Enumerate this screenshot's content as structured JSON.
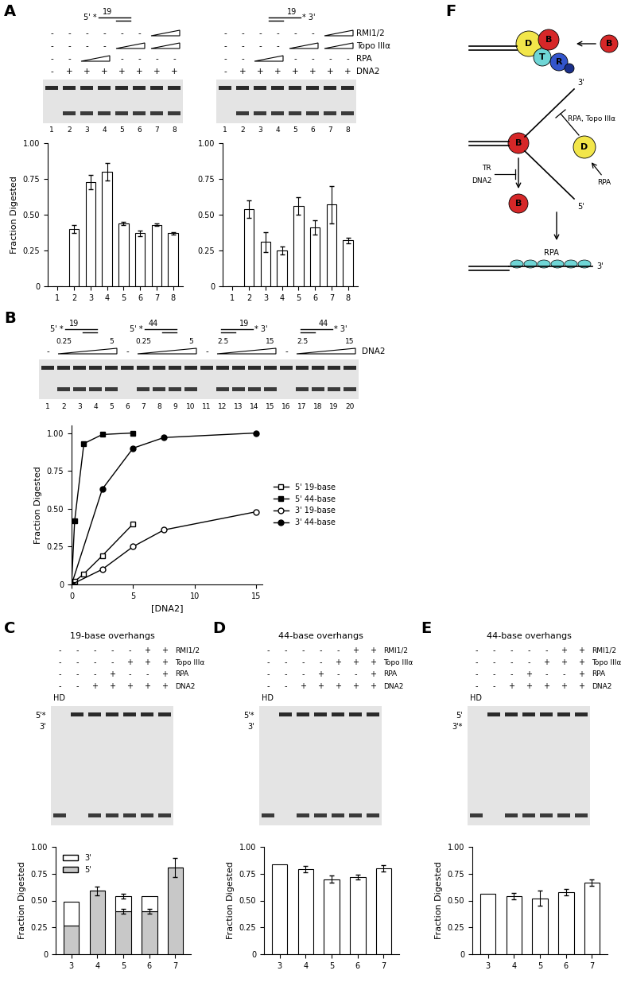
{
  "chart_data": [
    {
      "type": "bar",
      "categories": [
        "1",
        "2",
        "3",
        "4",
        "5",
        "6",
        "7",
        "8"
      ],
      "values": [
        0,
        0.4,
        0.73,
        0.8,
        0.44,
        0.37,
        0.43,
        0.37
      ],
      "errors": [
        0,
        0.03,
        0.05,
        0.06,
        0.01,
        0.02,
        0.01,
        0.01
      ],
      "color": "#ffffff",
      "ylabel": "Fraction Digested",
      "ylim": [
        0,
        1
      ],
      "yticks": [
        0,
        0.25,
        {
          "value": 0.5,
          "label": "0.50"
        },
        0.75,
        {
          "value": 1,
          "label": "1.00"
        }
      ]
    },
    {
      "type": "bar",
      "categories": [
        "1",
        "2",
        "3",
        "4",
        "5",
        "6",
        "7",
        "8"
      ],
      "values": [
        0,
        0.54,
        0.31,
        0.25,
        0.56,
        0.41,
        0.57,
        0.32
      ],
      "errors": [
        0,
        0.06,
        0.07,
        0.03,
        0.06,
        0.05,
        0.13,
        0.02
      ],
      "color": "#ffffff",
      "ylim": [
        0,
        1
      ],
      "yticks": [
        0,
        0.25,
        {
          "value": 0.5,
          "label": "0.50"
        },
        0.75,
        {
          "value": 1,
          "label": "1.00"
        }
      ]
    },
    {
      "type": "line",
      "xlabel": "[DNA2]",
      "ylabel": "Fraction Digested",
      "xlim": [
        0,
        15.5
      ],
      "xticks": [
        0,
        5,
        10,
        15
      ],
      "ylim": [
        0,
        1.05
      ],
      "yticks": [
        0,
        0.25,
        {
          "value": 0.5,
          "label": "0.50"
        },
        0.75,
        {
          "value": 1,
          "label": "1.00"
        }
      ],
      "legend": "right",
      "series": [
        {
          "name": "5' 19-base",
          "x": [
            0,
            0.25,
            1,
            2.5,
            5
          ],
          "values": [
            0,
            0.02,
            0.07,
            0.19,
            0.4
          ],
          "marker": "square",
          "color": "#ffffff"
        },
        {
          "name": "5' 44-base",
          "x": [
            0,
            0.25,
            1,
            2.5,
            5
          ],
          "values": [
            0,
            0.42,
            0.93,
            0.99,
            1.0
          ],
          "marker": "square",
          "color": "#000000"
        },
        {
          "name": "3' 19-base",
          "x": [
            0,
            2.5,
            5,
            7.5,
            15
          ],
          "values": [
            0,
            0.1,
            0.25,
            0.36,
            0.48
          ],
          "marker": "circle",
          "color": "#ffffff"
        },
        {
          "name": "3' 44-base",
          "x": [
            0,
            2.5,
            5,
            7.5,
            15
          ],
          "values": [
            0,
            0.63,
            0.9,
            0.97,
            1.0
          ],
          "marker": "circle",
          "color": "#000000"
        }
      ]
    },
    {
      "type": "bar",
      "stacked": true,
      "legend": "upper left",
      "categories": [
        "3",
        "4",
        "5",
        "6",
        "7"
      ],
      "ylabel": "Fraction Digested",
      "ylim": [
        0,
        1
      ],
      "yticks": [
        0,
        0.25,
        {
          "value": 0.5,
          "label": "0.50"
        },
        0.75,
        {
          "value": 1,
          "label": "1.00"
        }
      ],
      "series": [
        {
          "name": "5'",
          "color": "#c8c8c8",
          "values": [
            0.27,
            0.59,
            0.4,
            0.4,
            0.81
          ],
          "errors": [
            0,
            0.04,
            0.02,
            0.02,
            0.09
          ]
        },
        {
          "name": "3'",
          "color": "#ffffff",
          "values": [
            0.22,
            0,
            0.14,
            0.14,
            0
          ],
          "errors": [
            0,
            0,
            0.02,
            0,
            0
          ]
        }
      ]
    },
    {
      "type": "bar",
      "categories": [
        "3",
        "4",
        "5",
        "6",
        "7"
      ],
      "values": [
        0.84,
        0.79,
        0.7,
        0.72,
        0.8
      ],
      "errors": [
        0,
        0.03,
        0.03,
        0.02,
        0.03
      ],
      "color": "#ffffff",
      "ylabel": "Fraction Digested",
      "ylim": [
        0,
        1
      ],
      "yticks": [
        0,
        0.25,
        {
          "value": 0.5,
          "label": "0.50"
        },
        0.75,
        {
          "value": 1,
          "label": "1.00"
        }
      ]
    },
    {
      "type": "bar",
      "categories": [
        "3",
        "4",
        "5",
        "6",
        "7"
      ],
      "values": [
        0.56,
        0.54,
        0.52,
        0.58,
        0.67
      ],
      "errors": [
        0,
        0.03,
        0.07,
        0.03,
        0.03
      ],
      "color": "#ffffff",
      "ylabel": "Fraction Digested",
      "ylim": [
        0,
        1
      ],
      "yticks": [
        0,
        0.25,
        {
          "value": 0.5,
          "label": "0.50"
        },
        0.75,
        {
          "value": 1,
          "label": "1.00"
        }
      ]
    }
  ],
  "panels": [
    {
      "letter": "A",
      "row_labels": [
        "RMI1/2",
        "Topo IIIα",
        "RPA",
        "DNA2"
      ],
      "gels": [
        {
          "substrate": {
            "left": "5' *",
            "overhang": "19"
          },
          "signs": [
            [
              "-",
              "-",
              "-",
              "-",
              "-",
              "-",
              {
                "wedge": 2
              }
            ],
            [
              "-",
              "-",
              "-",
              "-",
              {
                "wedge": 2
              },
              {
                "wedge": 2
              }
            ],
            [
              "-",
              "-",
              {
                "wedge": 2
              },
              "-",
              "-",
              "-",
              "-"
            ],
            [
              "-",
              "+",
              "+",
              "+",
              "+",
              "+",
              "+",
              "+"
            ]
          ],
          "lanes": [
            "1",
            "2",
            "3",
            "4",
            "5",
            "6",
            "7",
            "8"
          ]
        },
        {
          "substrate": {
            "overhang": "19",
            "right": "* 3'"
          },
          "signs": [
            [
              "-",
              "-",
              "-",
              "-",
              "-",
              "-",
              {
                "wedge": 2
              }
            ],
            [
              "-",
              "-",
              "-",
              "-",
              {
                "wedge": 2
              },
              {
                "wedge": 2
              }
            ],
            [
              "-",
              "-",
              {
                "wedge": 2
              },
              "-",
              "-",
              "-",
              "-"
            ],
            [
              "-",
              "+",
              "+",
              "+",
              "+",
              "+",
              "+",
              "+"
            ]
          ],
          "lanes": [
            "1",
            "2",
            "3",
            "4",
            "5",
            "6",
            "7",
            "8"
          ]
        }
      ]
    },
    {
      "letter": "B",
      "row_labels": [
        "DNA2"
      ],
      "gels": [
        {
          "substrates": [
            {
              "left": "5' *",
              "overhang": "19"
            },
            {
              "left": "5' *",
              "overhang": "44"
            },
            {
              "overhang": "19",
              "right": "* 3'"
            },
            {
              "overhang": "44",
              "right": "* 3'"
            }
          ],
          "ramp_labels": [
            [
              "0.25",
              "5"
            ],
            [
              "0.25",
              "5"
            ],
            [
              "2.5",
              "15"
            ],
            [
              "2.5",
              "15"
            ]
          ],
          "signs": [
            [
              "-",
              {
                "wedge": 4
              },
              "-",
              {
                "wedge": 4
              },
              "-",
              {
                "wedge": 4
              },
              "-",
              {
                "wedge": 4
              }
            ]
          ],
          "lanes": [
            "1",
            "2",
            "3",
            "4",
            "5",
            "6",
            "7",
            "8",
            "9",
            "10",
            "11",
            "12",
            "13",
            "14",
            "15",
            "16",
            "17",
            "18",
            "19",
            "20"
          ]
        }
      ]
    },
    {
      "letter": "C",
      "row_labels": [
        "RMI1/2",
        "Topo IIIα",
        "RPA",
        "DNA2"
      ],
      "gels": [
        {
          "title": "19-base overhangs",
          "header": "HD",
          "side_labels": [
            "5'*",
            "3'"
          ],
          "signs": [
            [
              "-",
              "-",
              "-",
              "-",
              "-",
              "+",
              "+"
            ],
            [
              "-",
              "-",
              "-",
              "-",
              "+",
              "+",
              "+"
            ],
            [
              "-",
              "-",
              "-",
              "+",
              "-",
              "-",
              "+"
            ],
            [
              "-",
              "-",
              "+",
              "+",
              "+",
              "+",
              "+"
            ]
          ]
        }
      ]
    },
    {
      "letter": "D",
      "row_labels": [
        "RMI1/2",
        "Topo IIIα",
        "RPA",
        "DNA2"
      ],
      "gels": [
        {
          "title": "44-base overhangs",
          "header": "HD",
          "side_labels": [
            "5'*",
            "3'"
          ],
          "signs": [
            [
              "-",
              "-",
              "-",
              "-",
              "-",
              "+",
              "+"
            ],
            [
              "-",
              "-",
              "-",
              "-",
              "+",
              "+",
              "+"
            ],
            [
              "-",
              "-",
              "-",
              "+",
              "-",
              "-",
              "+"
            ],
            [
              "-",
              "-",
              "+",
              "+",
              "+",
              "+",
              "+"
            ]
          ]
        }
      ]
    },
    {
      "letter": "E",
      "row_labels": [
        "RMI1/2",
        "Topo IIIα",
        "RPA",
        "DNA2"
      ],
      "gels": [
        {
          "title": "44-base overhangs",
          "header": "HD",
          "side_labels": [
            "5'",
            "3'*"
          ],
          "signs": [
            [
              "-",
              "-",
              "-",
              "-",
              "-",
              "+",
              "+"
            ],
            [
              "-",
              "-",
              "-",
              "-",
              "+",
              "+",
              "+"
            ],
            [
              "-",
              "-",
              "-",
              "+",
              "-",
              "-",
              "+"
            ],
            [
              "-",
              "-",
              "+",
              "+",
              "+",
              "+",
              "+"
            ]
          ]
        }
      ]
    },
    {
      "letter": "F",
      "diagram": {
        "complex": [
          "D",
          "T",
          "B",
          "R"
        ],
        "free": "B",
        "helicase": "B",
        "nuclease": "D",
        "released": "B",
        "ends": [
          "3'",
          "5'"
        ],
        "inhibit_nuclease": "RPA, Topo IIIα",
        "stimulate_nuclease": "RPA",
        "inhibit_release": [
          "TR",
          "DNA2"
        ],
        "coating": "RPA",
        "coated_end": "3'"
      }
    }
  ]
}
